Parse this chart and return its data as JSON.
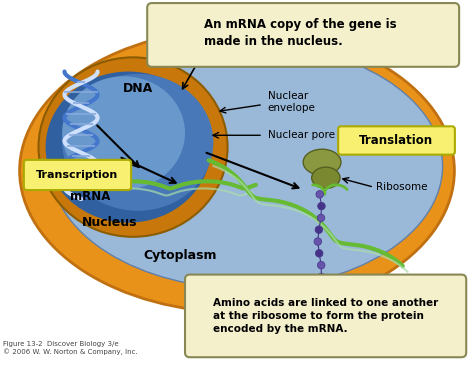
{
  "bg_color": "#ffffff",
  "cell_orange": "#e8921a",
  "cell_orange_dark": "#c07010",
  "cyto_blue": "#9ab8d8",
  "cyto_blue_light": "#b8cfe8",
  "nuc_ring_orange": "#c8780a",
  "nuc_inner_dark": "#3060a0",
  "nuc_inner_mid": "#4878b8",
  "nuc_inner_light": "#6898cc",
  "callout_bg": "#f5f0cc",
  "callout_border": "#888855",
  "yellow_box_bg": "#f8f070",
  "yellow_box_border": "#aaaa00",
  "callout_top_text": "An mRNA copy of the gene is\nmade in the nucleus.",
  "callout_bot_text": "Amino acids are linked to one another\nat the ribosome to form the protein\nencoded by the mRNA.",
  "label_transcription": "Transcription",
  "label_translation": "Translation",
  "label_dna": "DNA",
  "label_mrna": "mRNA",
  "label_nucleus": "Nucleus",
  "label_cytoplasm": "Cytoplasm",
  "label_nuclear_envelope": "Nuclear\nenvelope",
  "label_nuclear_pore": "Nuclear pore",
  "label_ribosome": "Ribosome",
  "caption": "Figure 13-2  Discover Biology 3/e\n© 2006 W. W. Norton & Company, Inc.",
  "dna_blue": "#4477cc",
  "dna_white": "#d0e0ff",
  "mrna_green": "#66bb33",
  "mrna_light": "#aaddaa",
  "ribosome_olive": "#7a8830",
  "ribosome_dark": "#556020",
  "protein_purple": "#6655aa",
  "protein_dark": "#443388"
}
